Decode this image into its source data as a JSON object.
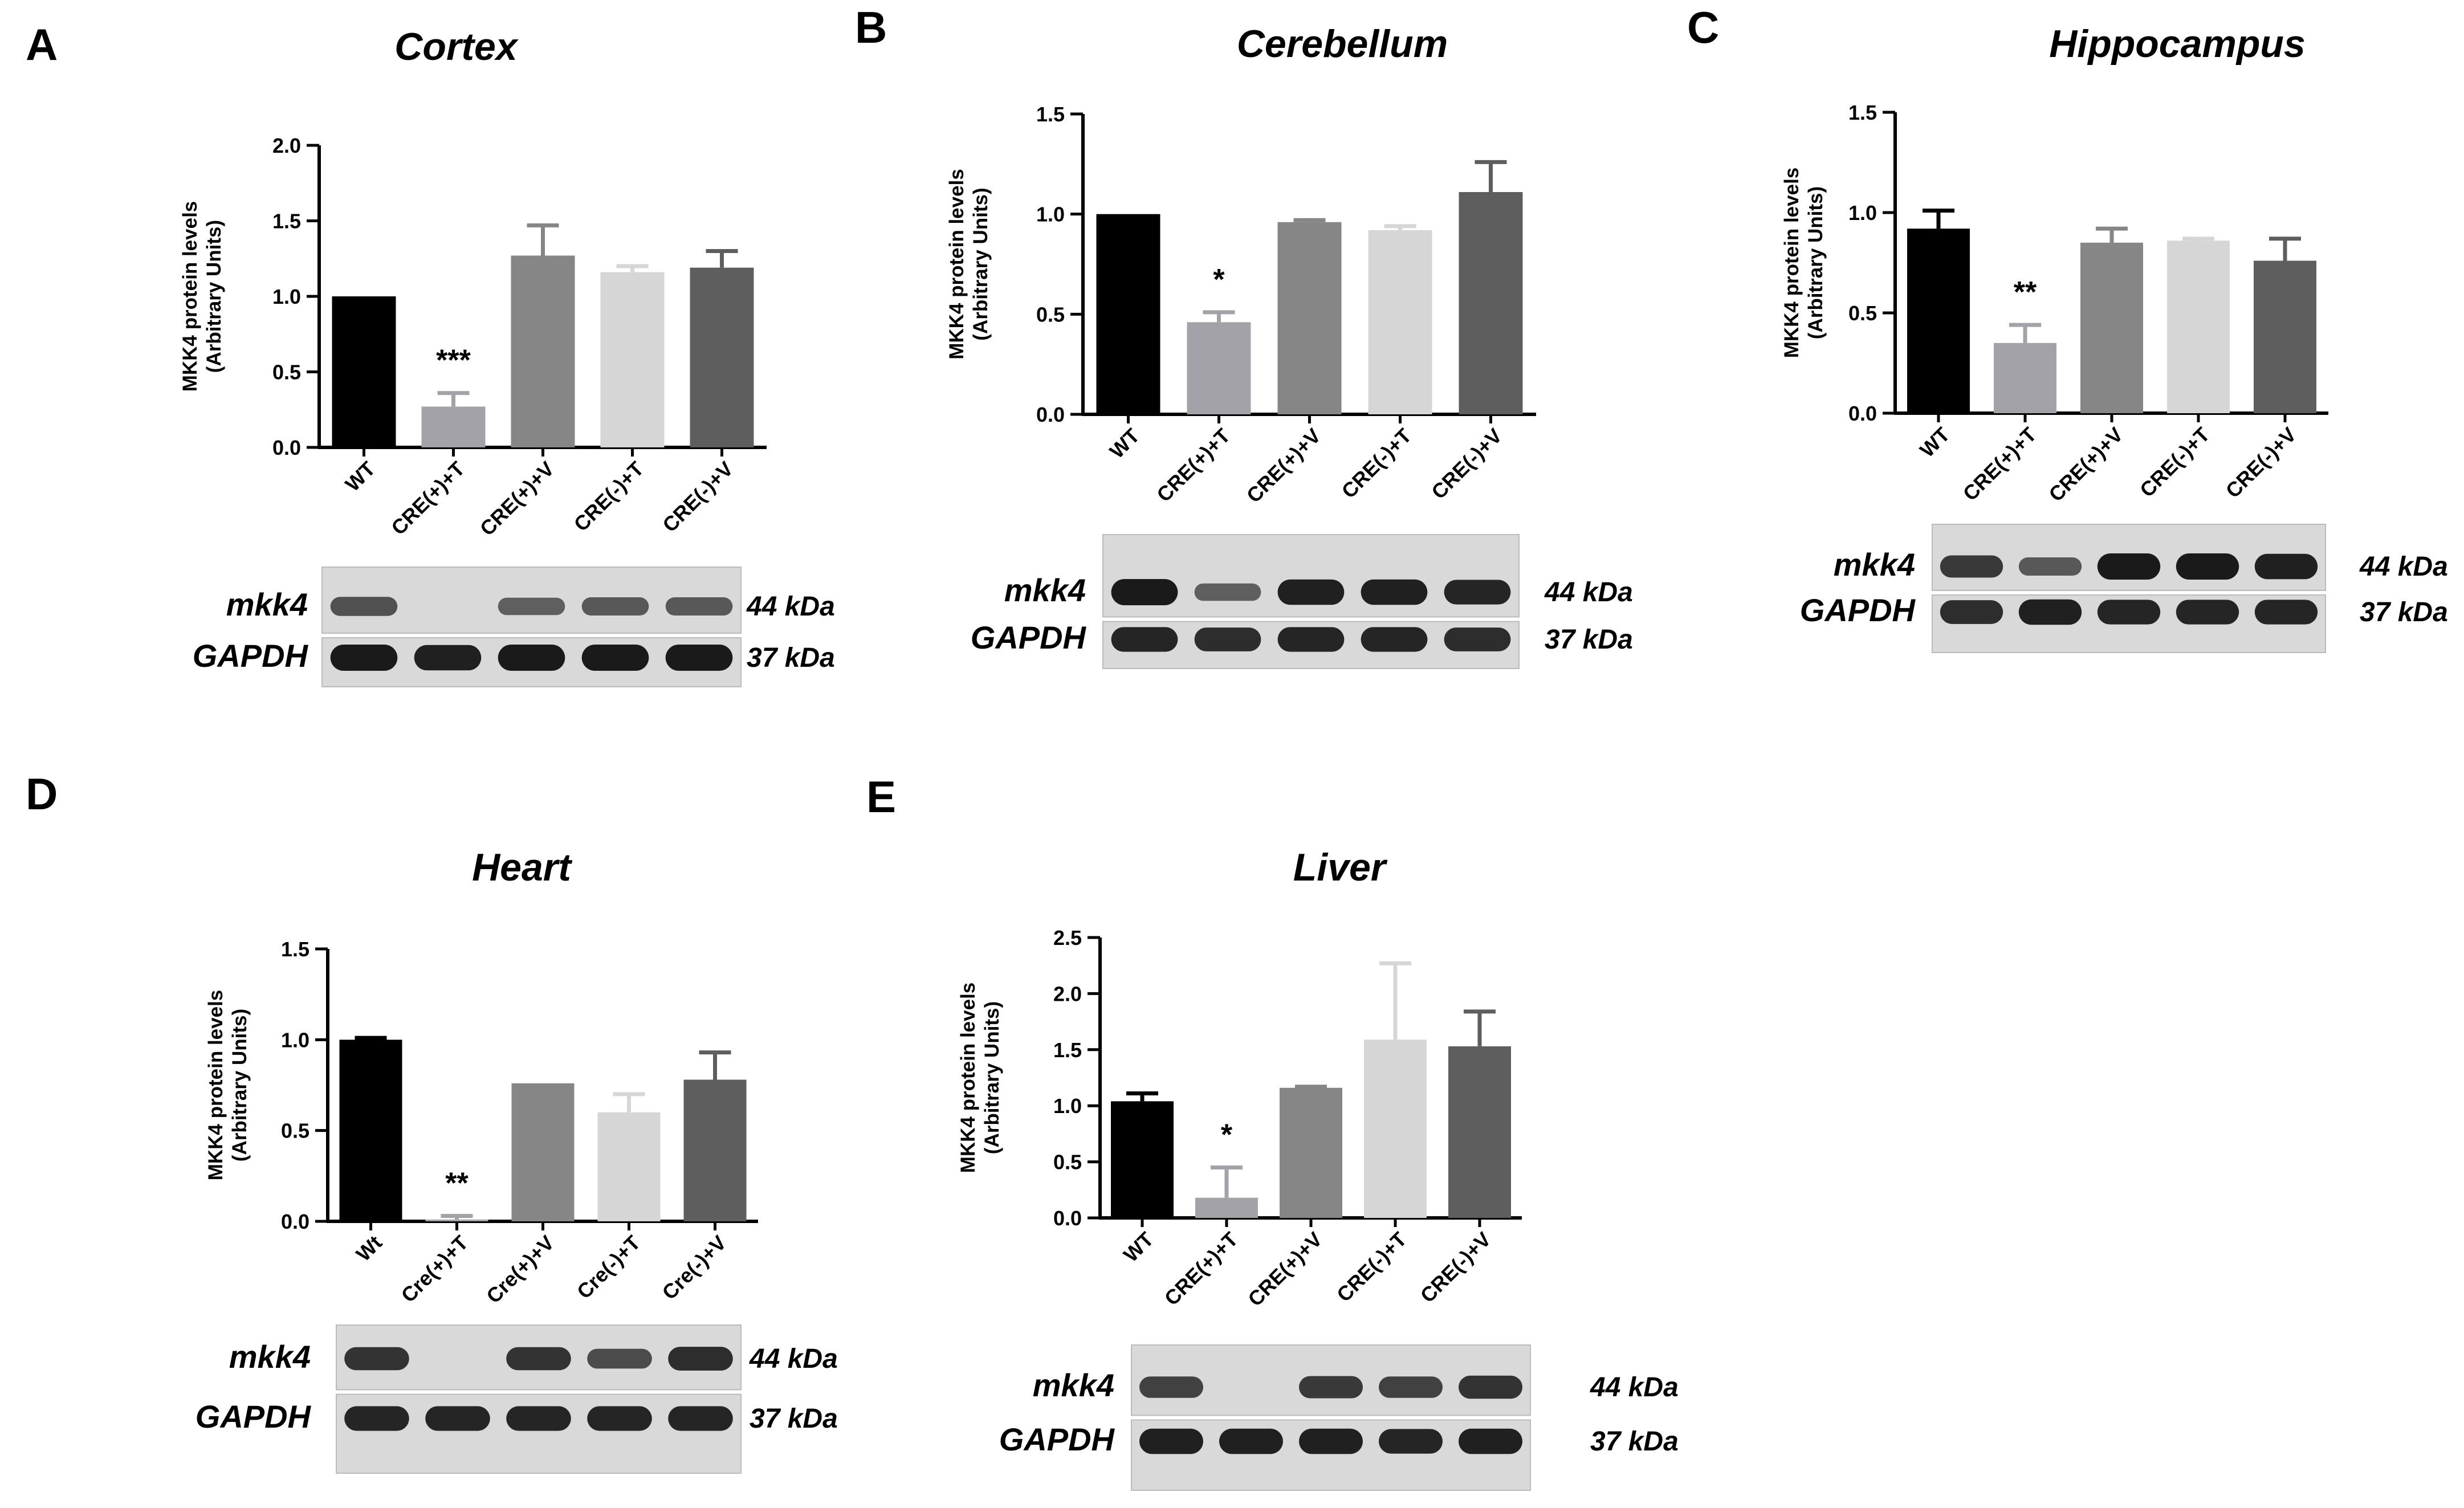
{
  "colors": {
    "series": [
      "#000000",
      "#a3a2a8",
      "#868686",
      "#d6d6d6",
      "#5e5e5e"
    ],
    "axis": "#000000",
    "blot_background": "#d9d9d9",
    "blot_band": "#1a1a1a"
  },
  "chart_data": [
    {
      "panel_letter": "A",
      "type": "bar",
      "title": "Cortex",
      "ylabel": "MKK4 protein levels (Arbitrary Units)",
      "ylabel_lines": [
        "MKK4 protein levels",
        "(Arbitrary Units)"
      ],
      "xlabel": "",
      "ylim": [
        0,
        2.0
      ],
      "yticks": [
        "0.0",
        "0.5",
        "1.0",
        "1.5",
        "2.0"
      ],
      "categories": [
        "WT",
        "CRE(+)+T",
        "CRE(+)+V",
        "CRE(-)+T",
        "CRE(-)+V"
      ],
      "values": [
        1.0,
        0.27,
        1.27,
        1.16,
        1.19
      ],
      "errors": [
        0.0,
        0.09,
        0.2,
        0.04,
        0.11
      ],
      "significance": [
        "",
        "***",
        "",
        "",
        ""
      ],
      "blot": {
        "rows": [
          {
            "label": "mkk4",
            "size": "44 kDa",
            "intensity": [
              0.55,
              0.0,
              0.45,
              0.5,
              0.5
            ]
          },
          {
            "label": "GAPDH",
            "size": "37 kDa",
            "intensity": [
              1.0,
              0.95,
              1.0,
              1.0,
              1.0
            ]
          }
        ]
      }
    },
    {
      "panel_letter": "B",
      "type": "bar",
      "title": "Cerebellum",
      "ylabel": "MKK4 protein levels (Arbitrary Units)",
      "ylabel_lines": [
        "MKK4 protein levels",
        "(Arbitrary Units)"
      ],
      "xlabel": "",
      "ylim": [
        0,
        1.5
      ],
      "yticks": [
        "0.0",
        "0.5",
        "1.0",
        "1.5"
      ],
      "categories": [
        "WT",
        "CRE(+)+T",
        "CRE(+)+V",
        "CRE(-)+T",
        "CRE(-)+V"
      ],
      "values": [
        1.0,
        0.46,
        0.96,
        0.92,
        1.11
      ],
      "errors": [
        0.0,
        0.05,
        0.01,
        0.02,
        0.15
      ],
      "significance": [
        "",
        "*",
        "",
        "",
        ""
      ],
      "blot": {
        "rows": [
          {
            "label": "mkk4",
            "size": "44 kDa",
            "intensity": [
              1.0,
              0.45,
              0.95,
              0.95,
              0.9
            ]
          },
          {
            "label": "GAPDH",
            "size": "37 kDa",
            "intensity": [
              0.9,
              0.85,
              0.9,
              0.9,
              0.85
            ]
          }
        ]
      }
    },
    {
      "panel_letter": "C",
      "type": "bar",
      "title": "Hippocampus",
      "ylabel": "MKK4 protein levels (Arbitrary Units)",
      "ylabel_lines": [
        "MKK4 protein levels",
        "(Arbitrary Units)"
      ],
      "xlabel": "",
      "ylim": [
        0,
        1.5
      ],
      "yticks": [
        "0.0",
        "0.5",
        "1.0",
        "1.5"
      ],
      "categories": [
        "WT",
        "CRE(+)+T",
        "CRE(+)+V",
        "CRE(-)+T",
        "CRE(-)+V"
      ],
      "values": [
        0.92,
        0.35,
        0.85,
        0.86,
        0.76
      ],
      "errors": [
        0.09,
        0.09,
        0.07,
        0.01,
        0.11
      ],
      "significance": [
        "",
        "**",
        "",
        "",
        ""
      ],
      "blot": {
        "rows": [
          {
            "label": "mkk4",
            "size": "44 kDa",
            "intensity": [
              0.75,
              0.5,
              1.0,
              1.0,
              0.95
            ]
          },
          {
            "label": "GAPDH",
            "size": "37 kDa",
            "intensity": [
              0.85,
              0.95,
              0.9,
              0.9,
              0.9
            ]
          }
        ]
      }
    },
    {
      "panel_letter": "D",
      "type": "bar",
      "title": "Heart",
      "ylabel": "MKK4 protein levels (Arbitrary Units)",
      "ylabel_lines": [
        "MKK4 protein levels",
        "(Arbitrary Units)"
      ],
      "xlabel": "",
      "ylim": [
        0,
        1.5
      ],
      "yticks": [
        "0.0",
        "0.5",
        "1.0",
        "1.5"
      ],
      "categories": [
        "Wt",
        "Cre(+)+T",
        "Cre(+)+V",
        "Cre(-)+T",
        "Cre(-)+V"
      ],
      "values": [
        1.0,
        0.01,
        0.76,
        0.6,
        0.78
      ],
      "errors": [
        0.01,
        0.02,
        0.0,
        0.1,
        0.15
      ],
      "significance": [
        "",
        "**",
        "",
        "",
        ""
      ],
      "blot": {
        "rows": [
          {
            "label": "mkk4",
            "size": "44 kDa",
            "intensity": [
              0.8,
              0.0,
              0.8,
              0.6,
              0.85
            ]
          },
          {
            "label": "GAPDH",
            "size": "37 kDa",
            "intensity": [
              0.9,
              0.9,
              0.9,
              0.9,
              0.9
            ]
          }
        ]
      }
    },
    {
      "panel_letter": "E",
      "type": "bar",
      "title": "Liver",
      "ylabel": "MKK4 protein levels (Arbitrary Units)",
      "ylabel_lines": [
        "MKK4 protein levels",
        "(Arbitrary Units)"
      ],
      "xlabel": "",
      "ylim": [
        0,
        2.5
      ],
      "yticks": [
        "0.0",
        "0.5",
        "1.0",
        "1.5",
        "2.0",
        "2.5"
      ],
      "categories": [
        "WT",
        "CRE(+)+T",
        "CRE(+)+V",
        "CRE(-)+T",
        "CRE(-)+V"
      ],
      "values": [
        1.04,
        0.18,
        1.16,
        1.59,
        1.53
      ],
      "errors": [
        0.07,
        0.27,
        0.01,
        0.68,
        0.31
      ],
      "significance": [
        "",
        "*",
        "",
        "",
        ""
      ],
      "blot": {
        "rows": [
          {
            "label": "mkk4",
            "size": "44 kDa",
            "intensity": [
              0.7,
              0.0,
              0.75,
              0.7,
              0.8
            ]
          },
          {
            "label": "GAPDH",
            "size": "37 kDa",
            "intensity": [
              0.95,
              0.95,
              0.95,
              0.9,
              0.95
            ]
          }
        ]
      }
    }
  ]
}
